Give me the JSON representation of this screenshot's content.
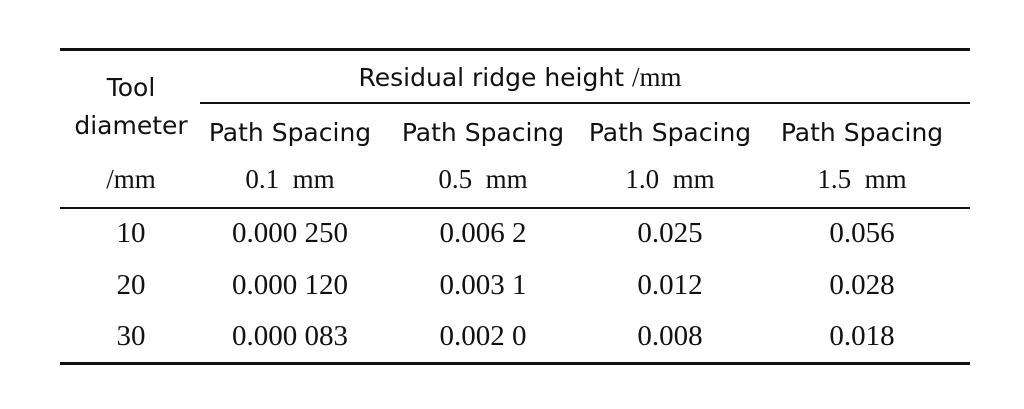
{
  "table": {
    "stub_header": [
      "Tool",
      "diameter",
      "/mm"
    ],
    "group_header": {
      "label": "Residual ridge height",
      "unit": "/mm"
    },
    "columns": [
      {
        "line1": "Path Spacing",
        "line2": "0.1  mm"
      },
      {
        "line1": "Path Spacing",
        "line2": "0.5  mm"
      },
      {
        "line1": "Path Spacing",
        "line2": "1.0  mm"
      },
      {
        "line1": "Path Spacing",
        "line2": "1.5  mm"
      }
    ],
    "rows": [
      {
        "diameter": "10",
        "values": [
          "0.000 250",
          "0.006 2",
          "0.025",
          "0.056"
        ]
      },
      {
        "diameter": "20",
        "values": [
          "0.000 120",
          "0.003 1",
          "0.012",
          "0.028"
        ]
      },
      {
        "diameter": "30",
        "values": [
          "0.000 083",
          "0.002 0",
          "0.008",
          "0.018"
        ]
      }
    ]
  }
}
